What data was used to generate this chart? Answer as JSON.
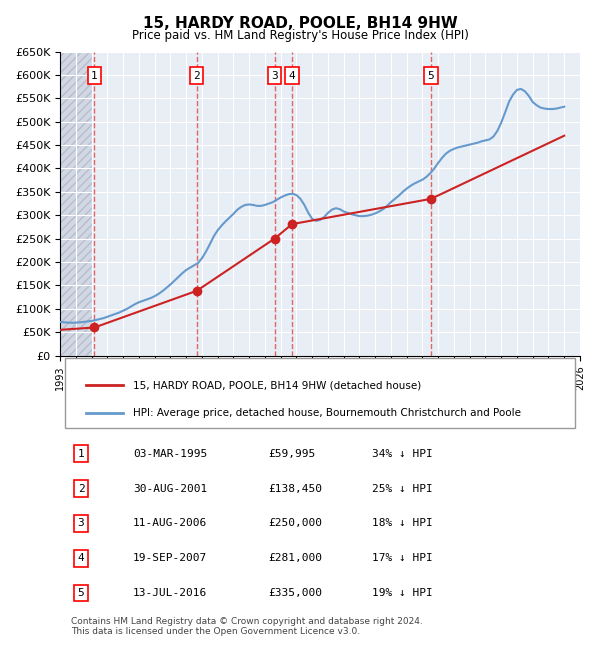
{
  "title": "15, HARDY ROAD, POOLE, BH14 9HW",
  "subtitle": "Price paid vs. HM Land Registry's House Price Index (HPI)",
  "ylabel_ticks": [
    "£0",
    "£50K",
    "£100K",
    "£150K",
    "£200K",
    "£250K",
    "£300K",
    "£350K",
    "£400K",
    "£450K",
    "£500K",
    "£550K",
    "£600K",
    "£650K"
  ],
  "ytick_values": [
    0,
    50000,
    100000,
    150000,
    200000,
    250000,
    300000,
    350000,
    400000,
    450000,
    500000,
    550000,
    600000,
    650000
  ],
  "xmin": 1993,
  "xmax": 2026,
  "ymin": 0,
  "ymax": 650000,
  "purchases": [
    {
      "label": "1",
      "year": 1995.17,
      "price": 59995
    },
    {
      "label": "2",
      "year": 2001.67,
      "price": 138450
    },
    {
      "label": "3",
      "year": 2006.61,
      "price": 250000
    },
    {
      "label": "4",
      "year": 2007.72,
      "price": 281000
    },
    {
      "label": "5",
      "year": 2016.54,
      "price": 335000
    }
  ],
  "hpi_color": "#6699cc",
  "price_color": "#cc2222",
  "vline_color": "#dd4444",
  "bg_chart": "#e8eef5",
  "bg_hatch": "#d0d8e4",
  "legend_entries": [
    "15, HARDY ROAD, POOLE, BH14 9HW (detached house)",
    "HPI: Average price, detached house, Bournemouth Christchurch and Poole"
  ],
  "table_data": [
    [
      "1",
      "03-MAR-1995",
      "£59,995",
      "34% ↓ HPI"
    ],
    [
      "2",
      "30-AUG-2001",
      "£138,450",
      "25% ↓ HPI"
    ],
    [
      "3",
      "11-AUG-2006",
      "£250,000",
      "18% ↓ HPI"
    ],
    [
      "4",
      "19-SEP-2007",
      "£281,000",
      "17% ↓ HPI"
    ],
    [
      "5",
      "13-JUL-2016",
      "£335,000",
      "19% ↓ HPI"
    ]
  ],
  "footnote": "Contains HM Land Registry data © Crown copyright and database right 2024.\nThis data is licensed under the Open Government Licence v3.0.",
  "hpi_data_x": [
    1993.0,
    1993.25,
    1993.5,
    1993.75,
    1994.0,
    1994.25,
    1994.5,
    1994.75,
    1995.0,
    1995.25,
    1995.5,
    1995.75,
    1996.0,
    1996.25,
    1996.5,
    1996.75,
    1997.0,
    1997.25,
    1997.5,
    1997.75,
    1998.0,
    1998.25,
    1998.5,
    1998.75,
    1999.0,
    1999.25,
    1999.5,
    1999.75,
    2000.0,
    2000.25,
    2000.5,
    2000.75,
    2001.0,
    2001.25,
    2001.5,
    2001.75,
    2002.0,
    2002.25,
    2002.5,
    2002.75,
    2003.0,
    2003.25,
    2003.5,
    2003.75,
    2004.0,
    2004.25,
    2004.5,
    2004.75,
    2005.0,
    2005.25,
    2005.5,
    2005.75,
    2006.0,
    2006.25,
    2006.5,
    2006.75,
    2007.0,
    2007.25,
    2007.5,
    2007.75,
    2008.0,
    2008.25,
    2008.5,
    2008.75,
    2009.0,
    2009.25,
    2009.5,
    2009.75,
    2010.0,
    2010.25,
    2010.5,
    2010.75,
    2011.0,
    2011.25,
    2011.5,
    2011.75,
    2012.0,
    2012.25,
    2012.5,
    2012.75,
    2013.0,
    2013.25,
    2013.5,
    2013.75,
    2014.0,
    2014.25,
    2014.5,
    2014.75,
    2015.0,
    2015.25,
    2015.5,
    2015.75,
    2016.0,
    2016.25,
    2016.5,
    2016.75,
    2017.0,
    2017.25,
    2017.5,
    2017.75,
    2018.0,
    2018.25,
    2018.5,
    2018.75,
    2019.0,
    2019.25,
    2019.5,
    2019.75,
    2020.0,
    2020.25,
    2020.5,
    2020.75,
    2021.0,
    2021.25,
    2021.5,
    2021.75,
    2022.0,
    2022.25,
    2022.5,
    2022.75,
    2023.0,
    2023.25,
    2023.5,
    2023.75,
    2024.0,
    2024.25,
    2024.5,
    2024.75,
    2025.0
  ],
  "hpi_data_y": [
    72000,
    71000,
    70500,
    70000,
    70500,
    71000,
    72000,
    73000,
    74000,
    76000,
    78000,
    80000,
    83000,
    86000,
    89000,
    92000,
    96000,
    100000,
    105000,
    110000,
    114000,
    117000,
    120000,
    123000,
    127000,
    132000,
    138000,
    145000,
    152000,
    160000,
    168000,
    176000,
    183000,
    188000,
    193000,
    198000,
    208000,
    222000,
    238000,
    255000,
    268000,
    278000,
    287000,
    295000,
    303000,
    312000,
    318000,
    322000,
    323000,
    322000,
    320000,
    320000,
    322000,
    325000,
    328000,
    333000,
    338000,
    342000,
    345000,
    346000,
    343000,
    335000,
    322000,
    305000,
    292000,
    288000,
    290000,
    296000,
    305000,
    312000,
    315000,
    313000,
    308000,
    305000,
    302000,
    300000,
    298000,
    298000,
    299000,
    301000,
    304000,
    308000,
    313000,
    320000,
    328000,
    335000,
    342000,
    350000,
    357000,
    363000,
    368000,
    372000,
    376000,
    382000,
    390000,
    400000,
    412000,
    423000,
    432000,
    438000,
    442000,
    445000,
    447000,
    449000,
    451000,
    453000,
    455000,
    458000,
    460000,
    462000,
    468000,
    480000,
    498000,
    520000,
    543000,
    558000,
    568000,
    570000,
    565000,
    555000,
    542000,
    535000,
    530000,
    528000,
    527000,
    527000,
    528000,
    530000,
    532000
  ],
  "price_line_x": [
    1993.0,
    1995.17,
    2001.67,
    2006.61,
    2007.72,
    2016.54,
    2025.0
  ],
  "price_line_y": [
    55000,
    59995,
    138450,
    250000,
    281000,
    335000,
    470000
  ]
}
